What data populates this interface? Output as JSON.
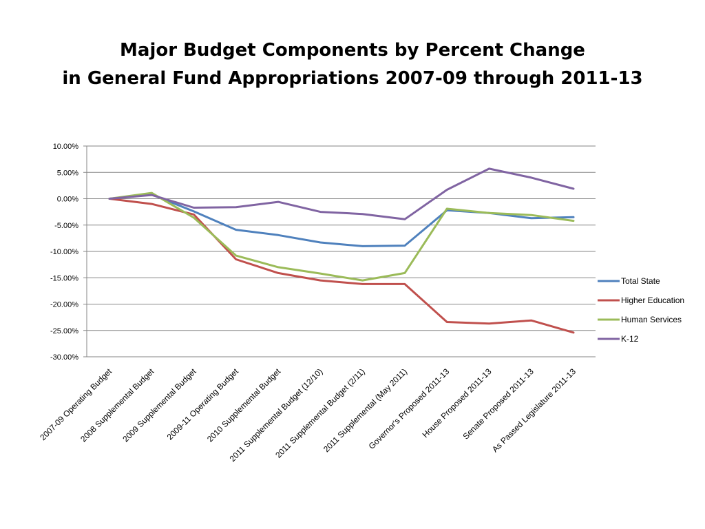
{
  "slide": {
    "title_line1": "Major Budget Components by Percent Change",
    "title_line2": "in General Fund Appropriations 2007-09 through 2011-13"
  },
  "chart_data": {
    "type": "line",
    "title": "Major Budget Components by Percent Change in General Fund Appropriations 2007-09 through 2011-13",
    "xlabel": "",
    "ylabel": "",
    "ylim": [
      -30,
      10
    ],
    "yticks": [
      10,
      5,
      0,
      -5,
      -10,
      -15,
      -20,
      -25,
      -30
    ],
    "ytick_labels": [
      "10.00%",
      "5.00%",
      "0.00%",
      "-5.00%",
      "-10.00%",
      "-15.00%",
      "-20.00%",
      "-25.00%",
      "-30.00%"
    ],
    "grid": true,
    "legend_position": "right",
    "categories": [
      "2007-09 Operating Budget",
      "2008 Supplemental Budget",
      "2009 Supplemental Budget",
      "2009-11 Operating Budget",
      "2010 Supplemental Budget",
      "2011 Supplemental Budget (12/10)",
      "2011 Supplemental Budget (2/11)",
      "2011 Supplemental (May 2011)",
      "Governor's Proposed 2011-13",
      "House Proposed 2011-13",
      "Senate Proposed 2011-13",
      "As Passed Legislature 2011-13"
    ],
    "series": [
      {
        "name": "Total State",
        "color": "#4f81bd",
        "values": [
          0.0,
          0.8,
          -2.4,
          -5.9,
          -6.9,
          -8.3,
          -9.0,
          -8.9,
          -2.2,
          -2.7,
          -3.7,
          -3.5
        ]
      },
      {
        "name": "Higher Education",
        "color": "#c0504d",
        "values": [
          0.0,
          -1.0,
          -3.0,
          -11.5,
          -14.1,
          -15.5,
          -16.2,
          -16.2,
          -23.4,
          -23.7,
          -23.1,
          -25.4
        ]
      },
      {
        "name": "Human Services",
        "color": "#9bbb59",
        "values": [
          0.0,
          1.1,
          -3.6,
          -10.8,
          -13.0,
          -14.2,
          -15.5,
          -14.1,
          -1.9,
          -2.7,
          -3.1,
          -4.2
        ]
      },
      {
        "name": "K-12",
        "color": "#8064a2",
        "values": [
          0.0,
          0.7,
          -1.7,
          -1.6,
          -0.6,
          -2.5,
          -2.9,
          -3.9,
          1.7,
          5.7,
          4.0,
          1.9
        ]
      }
    ]
  }
}
